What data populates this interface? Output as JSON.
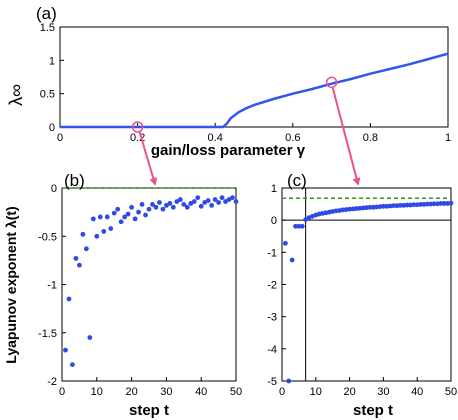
{
  "colors": {
    "curve": "#3355ee",
    "points": "#2f4ae8",
    "dashed": "#2b9a1e",
    "arrow": "#f0508a",
    "axis": "#000000"
  },
  "chart_data": [
    {
      "panel": "(a)",
      "type": "line",
      "xlabel": "gain/loss parameter γ",
      "ylabel": "λ∞",
      "xlim": [
        0,
        1
      ],
      "ylim": [
        0,
        1.5
      ],
      "xticks": [
        "0",
        "0.2",
        "0.4",
        "0.6",
        "0.8",
        "1"
      ],
      "yticks": [
        "0",
        "0.5",
        "1",
        "1.5"
      ],
      "grid": false,
      "series": [
        {
          "x": [
            0,
            0.1,
            0.2,
            0.3,
            0.4,
            0.42,
            0.43,
            0.44,
            0.46,
            0.48,
            0.5,
            0.55,
            0.6,
            0.65,
            0.7,
            0.75,
            0.8,
            0.85,
            0.9,
            0.95,
            1.0
          ],
          "y": [
            0,
            0,
            0,
            0,
            0,
            0,
            0.05,
            0.13,
            0.22,
            0.28,
            0.33,
            0.42,
            0.5,
            0.57,
            0.65,
            0.72,
            0.8,
            0.87,
            0.94,
            1.02,
            1.1
          ]
        }
      ],
      "markers": [
        {
          "x": 0.2,
          "y": 0
        },
        {
          "x": 0.7,
          "y": 0.67
        }
      ]
    },
    {
      "panel": "(b)",
      "type": "scatter",
      "xlabel": "step t",
      "ylabel": "Lyapunov exponent λ(t)",
      "xlim": [
        0,
        50
      ],
      "ylim": [
        -2,
        0
      ],
      "xticks": [
        "0",
        "10",
        "20",
        "30",
        "40",
        "50"
      ],
      "yticks": [
        "-2",
        "-1.5",
        "-1",
        "-0.5",
        "0"
      ],
      "reference_line": 0,
      "grid": false,
      "series": [
        {
          "x": [
            1,
            2,
            3,
            4,
            5,
            6,
            7,
            8,
            9,
            10,
            11,
            12,
            13,
            14,
            15,
            16,
            17,
            18,
            19,
            20,
            21,
            22,
            23,
            24,
            25,
            26,
            27,
            28,
            29,
            30,
            31,
            32,
            33,
            34,
            35,
            36,
            37,
            38,
            39,
            40,
            41,
            42,
            43,
            44,
            45,
            46,
            47,
            48,
            49,
            50
          ],
          "y": [
            -1.68,
            -1.15,
            -1.83,
            -0.73,
            -0.8,
            -0.48,
            -0.63,
            -1.55,
            -0.32,
            -0.5,
            -0.3,
            -0.45,
            -0.3,
            -0.42,
            -0.26,
            -0.22,
            -0.35,
            -0.3,
            -0.27,
            -0.2,
            -0.32,
            -0.25,
            -0.17,
            -0.28,
            -0.22,
            -0.17,
            -0.2,
            -0.15,
            -0.22,
            -0.18,
            -0.16,
            -0.2,
            -0.14,
            -0.12,
            -0.17,
            -0.2,
            -0.16,
            -0.14,
            -0.1,
            -0.19,
            -0.15,
            -0.13,
            -0.18,
            -0.12,
            -0.15,
            -0.1,
            -0.14,
            -0.12,
            -0.1,
            -0.14
          ]
        }
      ]
    },
    {
      "panel": "(c)",
      "type": "scatter",
      "xlabel": "step t",
      "ylabel": "",
      "xlim": [
        0,
        50
      ],
      "ylim": [
        -5,
        1
      ],
      "xticks": [
        "0",
        "10",
        "20",
        "30",
        "40",
        "50"
      ],
      "yticks": [
        "-5",
        "-4",
        "-3",
        "-2",
        "-1",
        "0",
        "1"
      ],
      "reference_line": 0.68,
      "zero_line": 0,
      "vertical_line": 7,
      "grid": false,
      "series": [
        {
          "x": [
            1,
            2,
            3,
            4,
            5,
            6,
            7,
            8,
            9,
            10,
            11,
            12,
            13,
            14,
            15,
            16,
            17,
            18,
            19,
            20,
            21,
            22,
            23,
            24,
            25,
            26,
            27,
            28,
            29,
            30,
            31,
            32,
            33,
            34,
            35,
            36,
            37,
            38,
            39,
            40,
            41,
            42,
            43,
            44,
            45,
            46,
            47,
            48,
            49,
            50
          ],
          "y": [
            -0.72,
            -5.0,
            -1.24,
            -0.19,
            -0.19,
            -0.19,
            0.02,
            0.08,
            0.12,
            0.16,
            0.19,
            0.21,
            0.23,
            0.25,
            0.27,
            0.29,
            0.3,
            0.32,
            0.33,
            0.34,
            0.35,
            0.36,
            0.37,
            0.38,
            0.39,
            0.4,
            0.4,
            0.41,
            0.42,
            0.43,
            0.43,
            0.44,
            0.45,
            0.45,
            0.46,
            0.46,
            0.47,
            0.47,
            0.48,
            0.48,
            0.49,
            0.49,
            0.5,
            0.5,
            0.51,
            0.51,
            0.52,
            0.52,
            0.52,
            0.53
          ]
        }
      ]
    }
  ]
}
